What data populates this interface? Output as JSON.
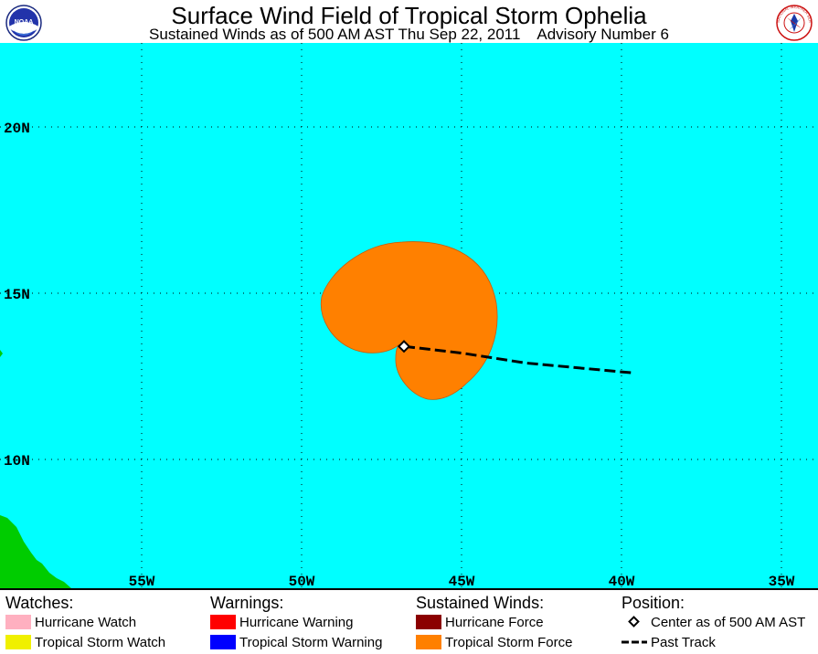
{
  "header": {
    "title": "Surface Wind Field of Tropical Storm Ophelia",
    "subtitle": "Sustained Winds as of 500 AM AST Thu Sep 22, 2011    Advisory Number 6",
    "left_logo_text": "NOAA",
    "right_logo_text": "NATIONAL WEATHER SERVICE"
  },
  "map": {
    "ocean_color": "#00ffff",
    "land_color": "#00cc00",
    "wind_field_color": "#ff8000",
    "grid_style": "dotted",
    "lon_labels": [
      "55W",
      "50W",
      "45W",
      "40W",
      "35W"
    ],
    "lat_labels": [
      "20N",
      "15N",
      "10N"
    ],
    "storm_center": {
      "lat": 13.4,
      "lon": -46.8
    },
    "past_track": [
      {
        "lat": 13.4,
        "lon": -46.8
      },
      {
        "lat": 13.2,
        "lon": -45.0
      },
      {
        "lat": 12.9,
        "lon": -43.0
      },
      {
        "lat": 12.6,
        "lon": -39.6
      }
    ]
  },
  "legend": {
    "watches": {
      "heading": "Watches:",
      "items": [
        {
          "label": "Hurricane Watch",
          "color": "#ffb0c0"
        },
        {
          "label": "Tropical Storm Watch",
          "color": "#f0f000"
        }
      ]
    },
    "warnings": {
      "heading": "Warnings:",
      "items": [
        {
          "label": "Hurricane Warning",
          "color": "#ff0000"
        },
        {
          "label": "Tropical Storm Warning",
          "color": "#0000ff"
        }
      ]
    },
    "sustained_winds": {
      "heading": "Sustained Winds:",
      "items": [
        {
          "label": "Hurricane Force",
          "color": "#8b0000"
        },
        {
          "label": "Tropical Storm Force",
          "color": "#ff8000"
        }
      ]
    },
    "position": {
      "heading": "Position:",
      "items": [
        {
          "label": "Center as of 500 AM AST",
          "icon": "diamond-icon"
        },
        {
          "label": "Past Track",
          "icon": "dashed-line-icon"
        }
      ]
    }
  }
}
